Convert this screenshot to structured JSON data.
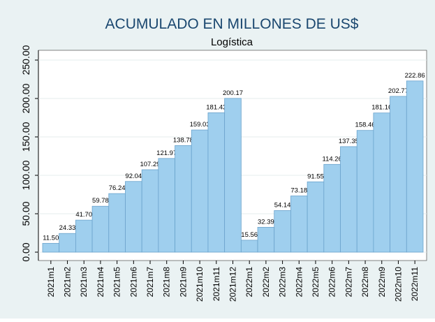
{
  "chart_data": {
    "type": "bar",
    "title": "ACUMULADO EN MILLONES DE US$",
    "subtitle": "Logística",
    "categories": [
      "2021m1",
      "2021m2",
      "2021m3",
      "2021m4",
      "2021m5",
      "2021m6",
      "2021m7",
      "2021m8",
      "2021m9",
      "2021m10",
      "2021m11",
      "2021m12",
      "2022m1",
      "2022m2",
      "2022m3",
      "2022m4",
      "2022m5",
      "2022m6",
      "2022m7",
      "2022m8",
      "2022m9",
      "2022m10",
      "2022m11"
    ],
    "values": [
      11.5,
      24.33,
      41.7,
      59.78,
      76.24,
      92.04,
      107.29,
      121.97,
      138.78,
      159.03,
      181.43,
      200.17,
      15.56,
      32.39,
      54.14,
      73.18,
      91.55,
      114.26,
      137.35,
      158.46,
      181.16,
      202.77,
      222.86
    ],
    "value_labels": [
      "11.50",
      "24.33",
      "41.70",
      "59.78",
      "76.24",
      "92.04",
      "107.29",
      "121.97",
      "138.78",
      "159.03",
      "181.43",
      "200.17",
      "15.56",
      "32.39",
      "54.14",
      "73.18",
      "91.55",
      "114.26",
      "137.35",
      "158.46",
      "181.16",
      "202.77",
      "222.86"
    ],
    "color": "#9fcfee",
    "ylim": [
      0,
      250
    ],
    "yticks": [
      {
        "value": 0,
        "label": "0.00"
      },
      {
        "value": 50,
        "label": "50.00"
      },
      {
        "value": 100,
        "label": "100.00"
      },
      {
        "value": 150,
        "label": "150.00"
      },
      {
        "value": 200,
        "label": "200.00"
      },
      {
        "value": 250,
        "label": "250.00"
      }
    ],
    "grid": true
  }
}
